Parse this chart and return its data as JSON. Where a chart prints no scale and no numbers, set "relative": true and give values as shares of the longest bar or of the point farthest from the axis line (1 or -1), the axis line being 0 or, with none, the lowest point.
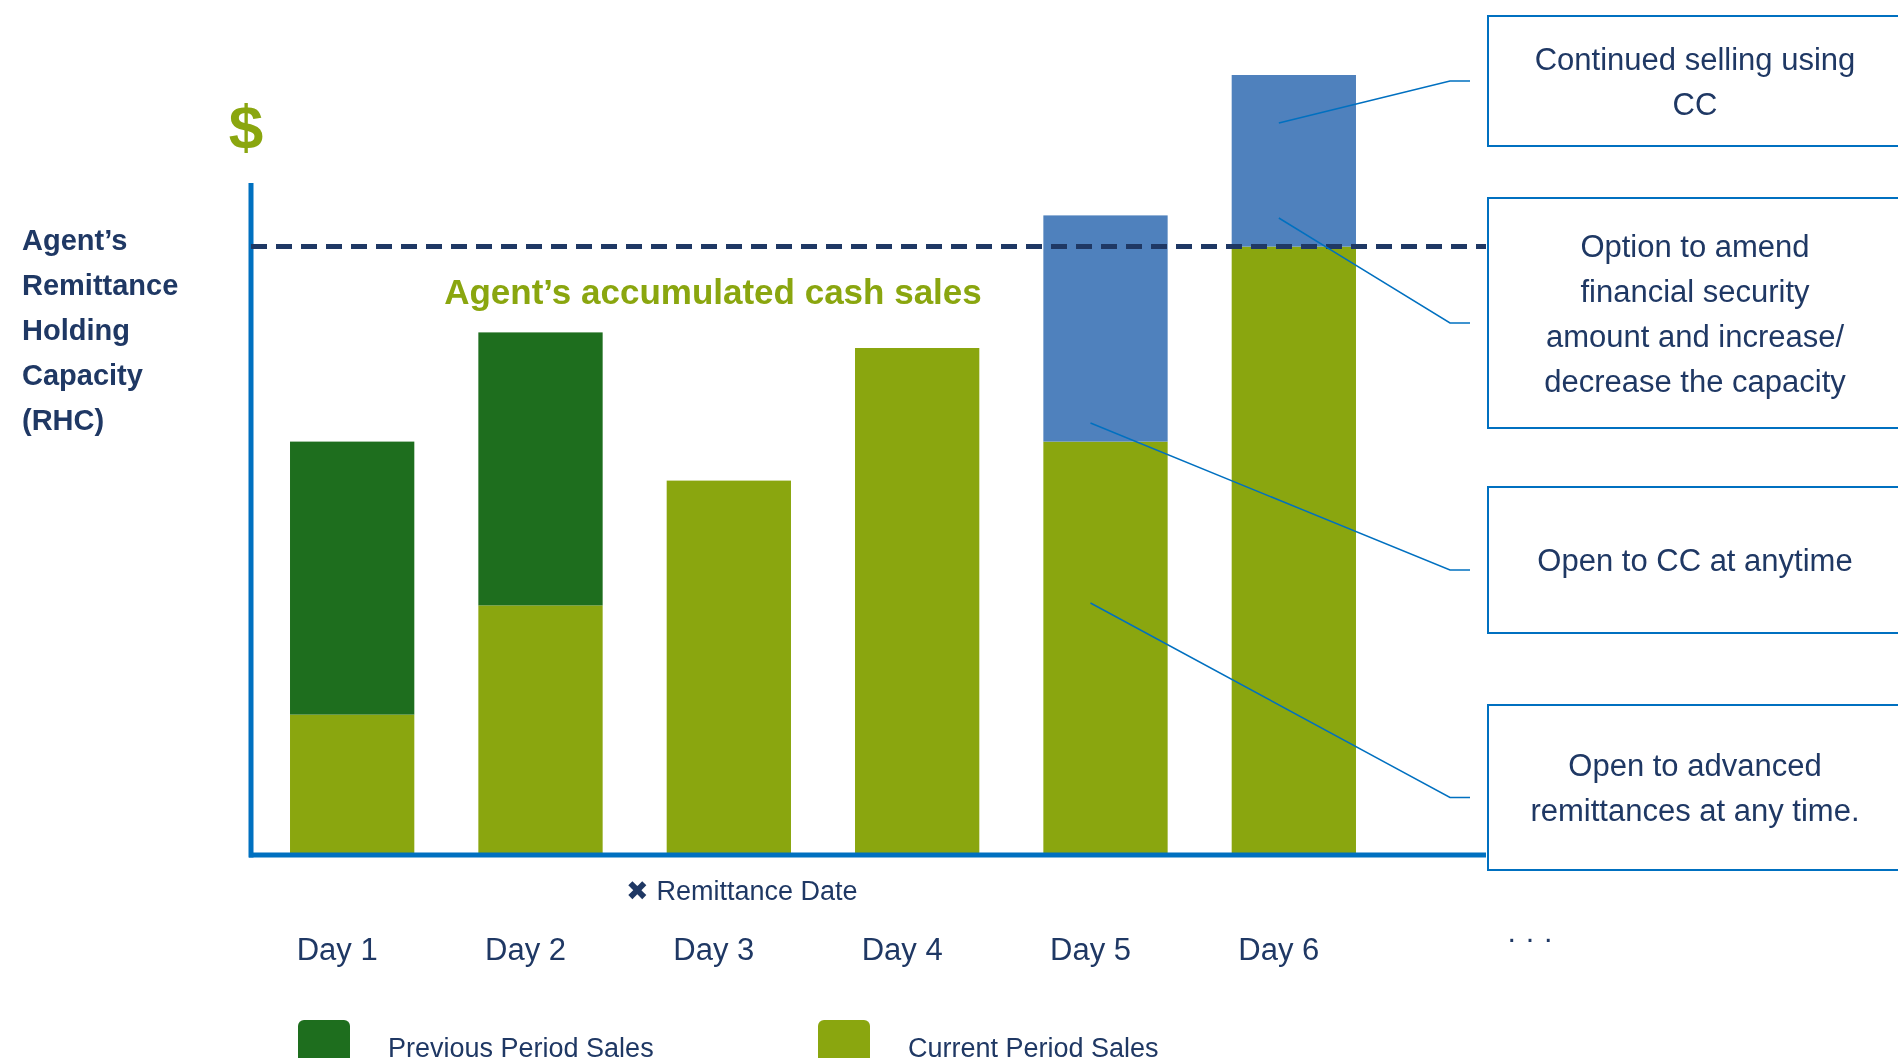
{
  "chart_data": {
    "type": "bar",
    "stacked": true,
    "relative": true,
    "ylabel": "Agent’s Remittance Holding Capacity (RHC)",
    "categories": [
      "Day 1",
      "Day 2",
      "Day 3",
      "Day 4",
      "Day 5",
      "Day 6"
    ],
    "series": [
      {
        "name": "Current Period Sales",
        "color": "#8aa60f",
        "values": [
          0.18,
          0.32,
          0.48,
          0.65,
          0.53,
          0.78
        ]
      },
      {
        "name": "Previous Period Sales",
        "color": "#1e6e1e",
        "values": [
          0.35,
          0.35,
          null,
          null,
          null,
          null
        ]
      },
      {
        "color": "#4f81bd",
        "values": [
          null,
          null,
          null,
          null,
          0.29,
          0.22
        ]
      }
    ],
    "ref_lines": [
      {
        "axis": "y",
        "value": 0.78,
        "label": "Agent’s accumulated cash sales",
        "color": "#1f3864",
        "line_style": "dashed"
      }
    ],
    "legend": "bottom",
    "annotations": [
      "$",
      "✖ Remittance Date",
      "· · ·",
      "Continued selling using CC",
      "Option to amend financial security amount and increase/ decrease the capacity",
      "Open to CC at anytime",
      "Open to advanced remittances at any time."
    ]
  }
}
